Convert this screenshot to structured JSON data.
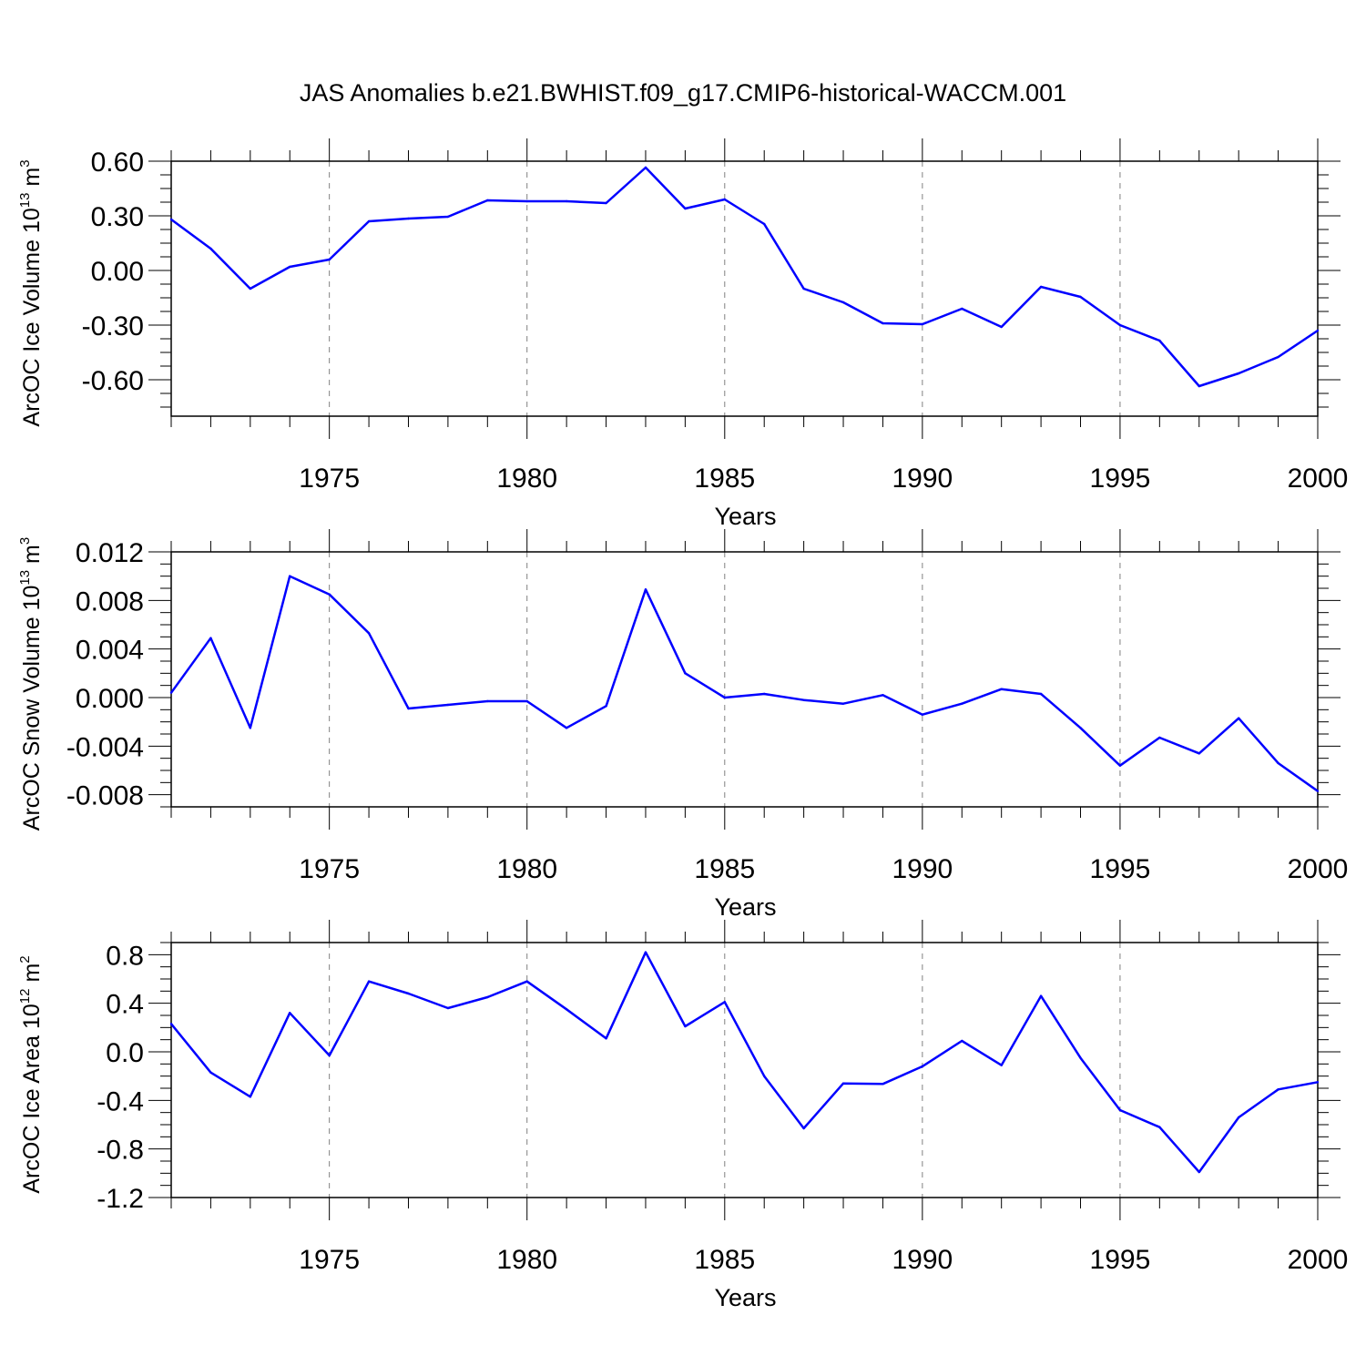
{
  "title": "JAS Anomalies b.e21.BWHIST.f09_g17.CMIP6-historical-WACCM.001",
  "colors": {
    "line": "#0000ff",
    "axis": "#000000",
    "grid": "#808080"
  },
  "chart_data": [
    {
      "type": "line",
      "ylabel": {
        "text": "ArcOC Ice Volume 10",
        "exp": "13",
        "unit": " m",
        "unit_exp": "3"
      },
      "xlabel": "Years",
      "xlim": [
        1971,
        2000
      ],
      "ylim": [
        -0.8,
        0.6
      ],
      "yticks": [
        0.6,
        0.3,
        0.0,
        -0.3,
        -0.6
      ],
      "ytick_labels": [
        "0.60",
        "0.30",
        "0.00",
        "-0.30",
        "-0.60"
      ],
      "xticks": [
        1975,
        1980,
        1985,
        1990,
        1995,
        2000
      ],
      "xtick_labels": [
        "1975",
        "1980",
        "1985",
        "1990",
        "1995",
        "2000"
      ],
      "series": [
        {
          "name": "Ice Volume",
          "x": [
            1971,
            1972,
            1973,
            1974,
            1975,
            1976,
            1977,
            1978,
            1979,
            1980,
            1981,
            1982,
            1983,
            1984,
            1985,
            1986,
            1987,
            1988,
            1989,
            1990,
            1991,
            1992,
            1993,
            1994,
            1995,
            1996,
            1997,
            1998,
            1999,
            2000
          ],
          "y": [
            0.28,
            0.12,
            -0.1,
            0.02,
            0.06,
            0.27,
            0.285,
            0.295,
            0.385,
            0.38,
            0.38,
            0.37,
            0.565,
            0.34,
            0.39,
            0.255,
            -0.1,
            -0.175,
            -0.29,
            -0.295,
            -0.21,
            -0.31,
            -0.09,
            -0.145,
            -0.3,
            -0.385,
            -0.635,
            -0.565,
            -0.475,
            -0.33
          ]
        }
      ]
    },
    {
      "type": "line",
      "ylabel": {
        "text": "ArcOC Snow Volume 10",
        "exp": "13",
        "unit": " m",
        "unit_exp": "3"
      },
      "xlabel": "Years",
      "xlim": [
        1971,
        2000
      ],
      "ylim": [
        -0.009,
        0.012
      ],
      "yticks": [
        0.012,
        0.008,
        0.004,
        0.0,
        -0.004,
        -0.008
      ],
      "ytick_labels": [
        "0.012",
        "0.008",
        "0.004",
        "0.000",
        "-0.004",
        "-0.008"
      ],
      "xticks": [
        1975,
        1980,
        1985,
        1990,
        1995,
        2000
      ],
      "xtick_labels": [
        "1975",
        "1980",
        "1985",
        "1990",
        "1995",
        "2000"
      ],
      "series": [
        {
          "name": "Snow Volume",
          "x": [
            1971,
            1972,
            1973,
            1974,
            1975,
            1976,
            1977,
            1978,
            1979,
            1980,
            1981,
            1982,
            1983,
            1984,
            1985,
            1986,
            1987,
            1988,
            1989,
            1990,
            1991,
            1992,
            1993,
            1994,
            1995,
            1996,
            1997,
            1998,
            1999,
            2000
          ],
          "y": [
            0.0004,
            0.0049,
            -0.0025,
            0.01,
            0.0085,
            0.0053,
            -0.0009,
            -0.0006,
            -0.0003,
            -0.0003,
            -0.0025,
            -0.0007,
            0.0089,
            0.002,
            0.0,
            0.0003,
            -0.0002,
            -0.0005,
            0.0002,
            -0.0014,
            -0.0005,
            0.0007,
            0.0003,
            -0.0025,
            -0.0056,
            -0.0033,
            -0.0046,
            -0.0017,
            -0.0054,
            -0.0077
          ]
        }
      ]
    },
    {
      "type": "line",
      "ylabel": {
        "text": "ArcOC Ice Area 10",
        "exp": "12",
        "unit": " m",
        "unit_exp": "2"
      },
      "xlabel": "Years",
      "xlim": [
        1971,
        2000
      ],
      "ylim": [
        -1.2,
        0.9
      ],
      "yticks": [
        0.8,
        0.4,
        0.0,
        -0.4,
        -0.8,
        -1.2
      ],
      "ytick_labels": [
        "0.8",
        "0.4",
        "0.0",
        "-0.4",
        "-0.8",
        "-1.2"
      ],
      "xticks": [
        1975,
        1980,
        1985,
        1990,
        1995,
        2000
      ],
      "xtick_labels": [
        "1975",
        "1980",
        "1985",
        "1990",
        "1995",
        "2000"
      ],
      "series": [
        {
          "name": "Ice Area",
          "x": [
            1971,
            1972,
            1973,
            1974,
            1975,
            1976,
            1977,
            1978,
            1979,
            1980,
            1981,
            1982,
            1983,
            1984,
            1985,
            1986,
            1987,
            1988,
            1989,
            1990,
            1991,
            1992,
            1993,
            1994,
            1995,
            1996,
            1997,
            1998,
            1999,
            2000
          ],
          "y": [
            0.23,
            -0.17,
            -0.37,
            0.32,
            -0.03,
            0.58,
            0.48,
            0.36,
            0.45,
            0.58,
            0.35,
            0.11,
            0.82,
            0.21,
            0.41,
            -0.2,
            -0.63,
            -0.26,
            -0.265,
            -0.12,
            0.09,
            -0.11,
            0.46,
            -0.05,
            -0.48,
            -0.62,
            -0.99,
            -0.54,
            -0.31,
            -0.25
          ]
        }
      ]
    }
  ]
}
